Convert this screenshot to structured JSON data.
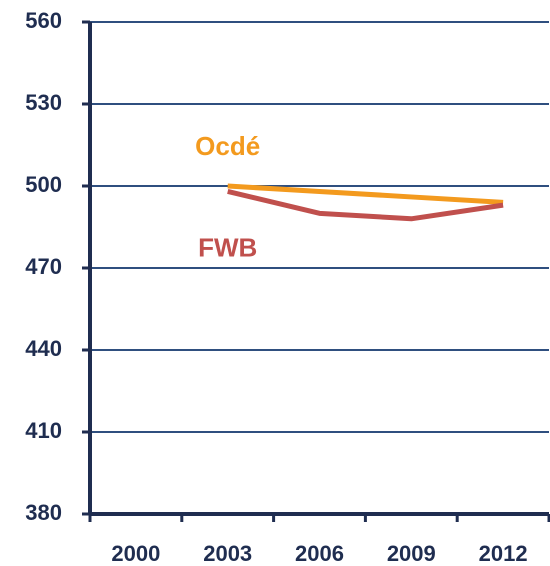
{
  "chart_data": {
    "type": "line",
    "categories": [
      "2000",
      "2003",
      "2006",
      "2009",
      "2012"
    ],
    "series": [
      {
        "name": "Ocdé",
        "color": "#f39a1e",
        "values": [
          null,
          500,
          498,
          496,
          494
        ]
      },
      {
        "name": "FWB",
        "color": "#c0504d",
        "values": [
          null,
          498,
          490,
          488,
          493
        ]
      }
    ],
    "ylim": [
      380,
      560
    ],
    "yticks": [
      380,
      410,
      440,
      470,
      500,
      530,
      560
    ],
    "grid": true
  }
}
